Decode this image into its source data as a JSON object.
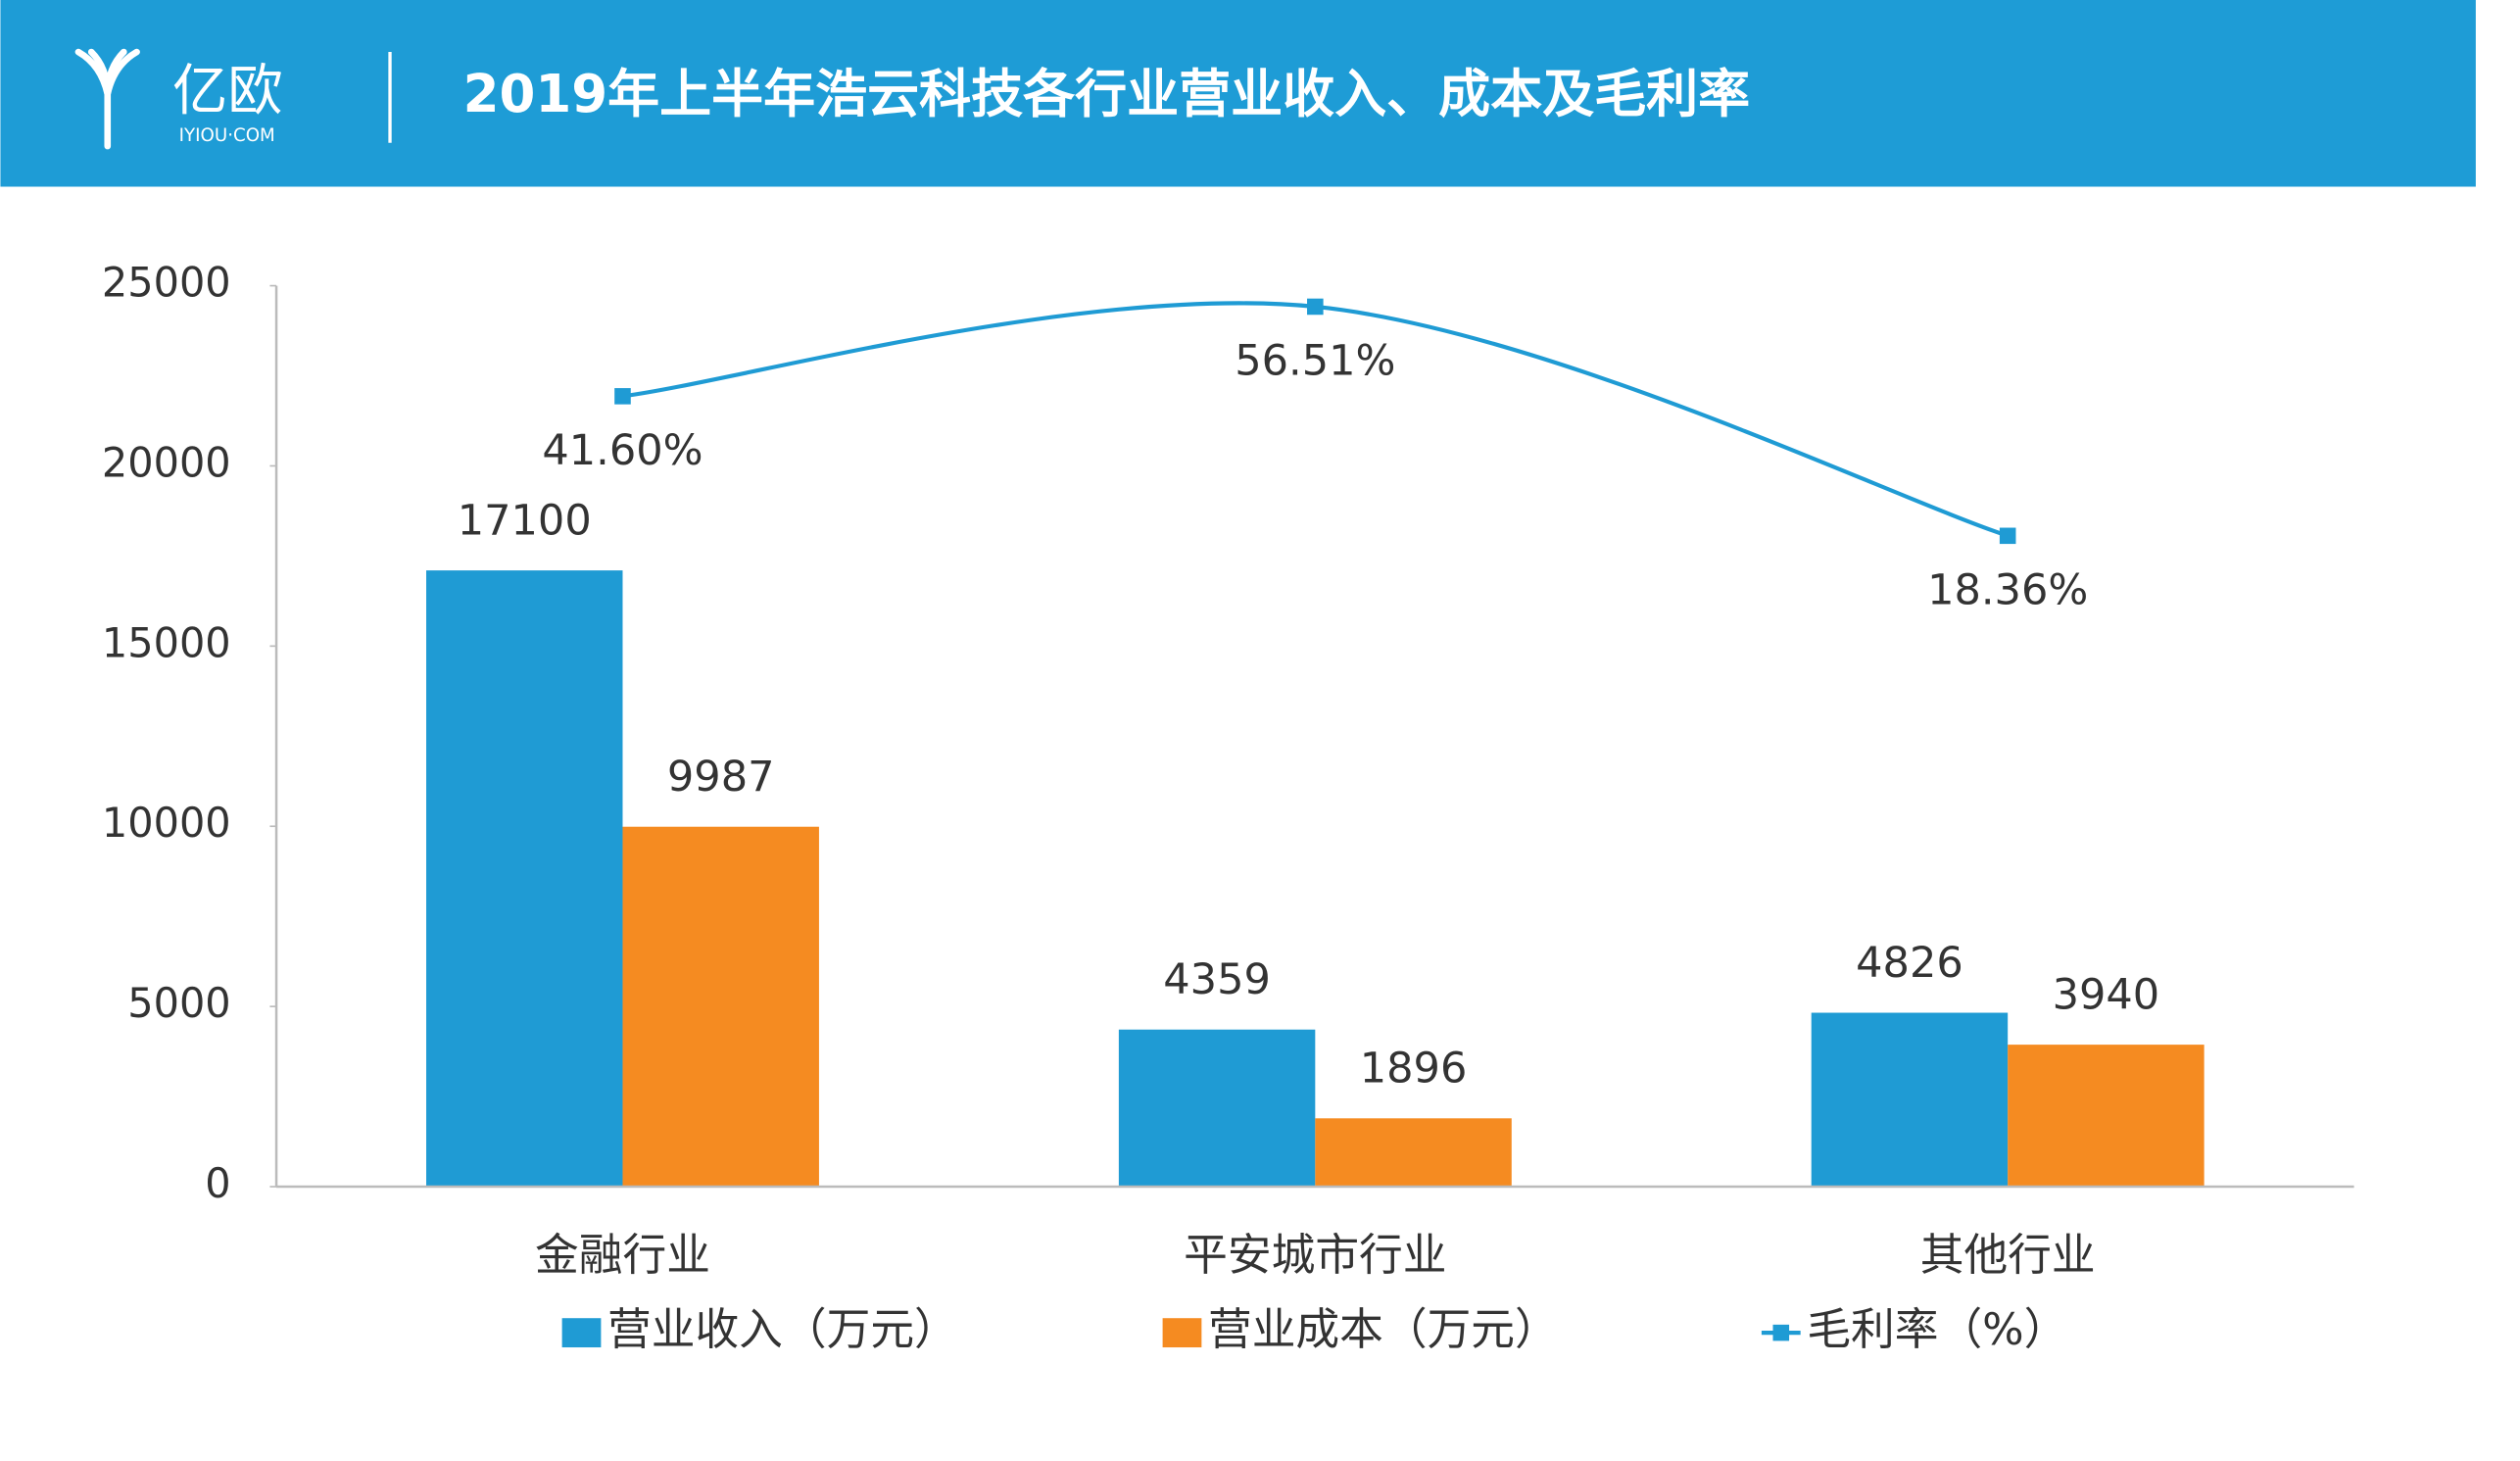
{
  "header": {
    "logo_text": "亿欧",
    "logo_sub": "IYIOU·COM"
  },
  "chart_data": {
    "type": "bar",
    "title": "2019年上半年浩云科技各行业营业收入、成本及毛利率",
    "categories": [
      "金融行业",
      "平安城市行业",
      "其他行业"
    ],
    "series": [
      {
        "name": "营业收入（万元）",
        "type": "bar",
        "color": "#1f9bd4",
        "values": [
          17100,
          4359,
          4826
        ]
      },
      {
        "name": "营业成本（万元）",
        "type": "bar",
        "color": "#f58b21",
        "values": [
          9987,
          1896,
          3940
        ]
      },
      {
        "name": "毛利率（%）",
        "type": "line",
        "axis": "y2",
        "color": "#1f9bd4",
        "values": [
          41.6,
          56.51,
          18.36
        ],
        "value_labels": [
          "41.60%",
          "56.51%",
          "18.36%"
        ]
      }
    ],
    "ylim": [
      0,
      25000
    ],
    "yticks": [
      0,
      5000,
      10000,
      15000,
      20000,
      25000
    ],
    "y2lim": [
      -90,
      60
    ],
    "grid": false,
    "legend": "bottom"
  }
}
